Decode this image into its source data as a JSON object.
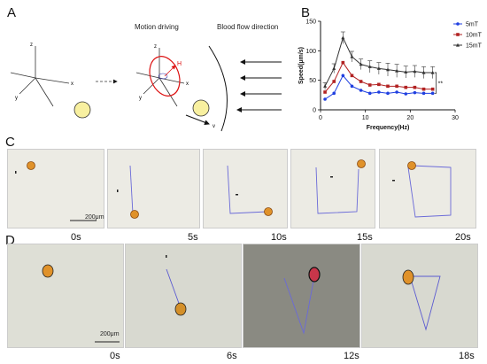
{
  "panel_a": {
    "letter": "A",
    "motion_label": "Motion driving",
    "flow_label": "Blood flow direction",
    "axis_z": "z",
    "axis_x": "x",
    "axis_y": "y",
    "field_label": "H",
    "velocity_label": "v"
  },
  "panel_b": {
    "letter": "B"
  },
  "panel_c": {
    "letter": "C",
    "scale_bar": "200μm",
    "frames": [
      {
        "time": "0s"
      },
      {
        "time": "5s"
      },
      {
        "time": "10s"
      },
      {
        "time": "15s"
      },
      {
        "time": "20s"
      }
    ]
  },
  "panel_d": {
    "letter": "D",
    "scale_bar": "200μm",
    "frames": [
      {
        "time": "0s"
      },
      {
        "time": "6s"
      },
      {
        "time": "12s"
      },
      {
        "time": "18s"
      }
    ]
  },
  "chart_data": {
    "type": "line",
    "xlabel": "Frequency(Hz)",
    "ylabel": "Speed(μm/s)",
    "xlim": [
      0,
      30
    ],
    "ylim": [
      0,
      150
    ],
    "xticks": [
      "0",
      "10",
      "20",
      "30"
    ],
    "yticks": [
      "0",
      "50",
      "100",
      "150"
    ],
    "legend_position": "top-right",
    "significance": "**",
    "x": [
      1,
      3,
      5,
      7,
      9,
      11,
      13,
      15,
      17,
      19,
      21,
      23,
      25
    ],
    "series": [
      {
        "name": "5mT",
        "color": "#1f3fe0",
        "marker": "circle",
        "values": [
          18,
          28,
          58,
          40,
          33,
          28,
          30,
          28,
          30,
          27,
          29,
          28,
          28
        ]
      },
      {
        "name": "10mT",
        "color": "#b22222",
        "marker": "square",
        "values": [
          30,
          48,
          80,
          58,
          48,
          42,
          43,
          40,
          40,
          38,
          38,
          35,
          35
        ]
      },
      {
        "name": "15mT",
        "color": "#333333",
        "marker": "triangle",
        "values": [
          40,
          70,
          122,
          90,
          77,
          73,
          70,
          68,
          66,
          64,
          65,
          63,
          63
        ],
        "error": [
          6,
          8,
          10,
          9,
          9,
          10,
          10,
          11,
          11,
          10,
          10,
          10,
          10
        ]
      }
    ]
  }
}
